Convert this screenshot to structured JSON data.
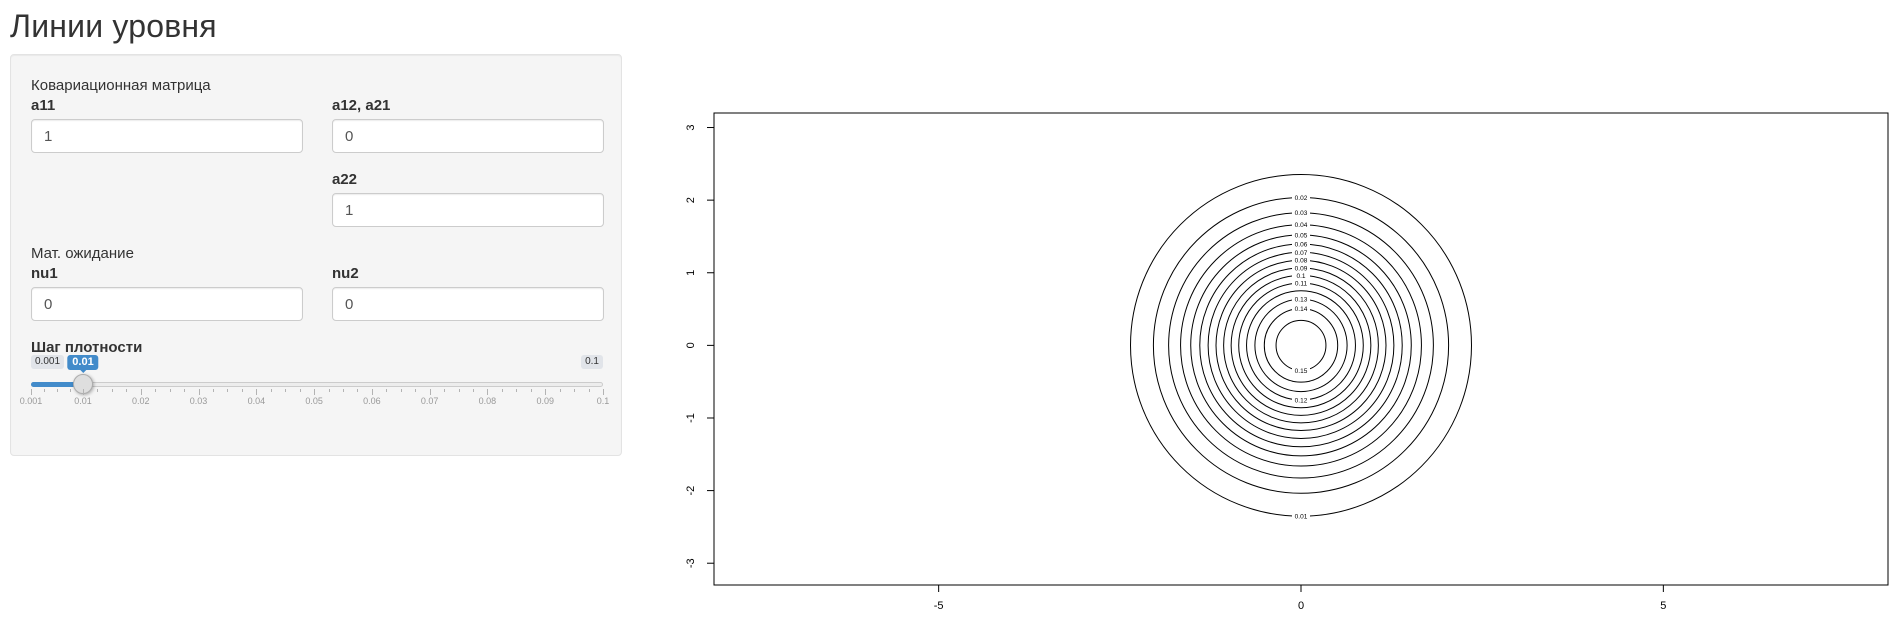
{
  "page": {
    "title": "Линии уровня"
  },
  "sidebar": {
    "cov_section_label": "Ковариационная матрица",
    "a11": {
      "label": "a11",
      "value": "1"
    },
    "a12": {
      "label": "a12, a21",
      "value": "0"
    },
    "a22": {
      "label": "a22",
      "value": "1"
    },
    "mean_section_label": "Мат. ожидание",
    "nu1": {
      "label": "nu1",
      "value": "0"
    },
    "nu2": {
      "label": "nu2",
      "value": "0"
    },
    "step": {
      "label": "Шаг плотности",
      "min_label": "0.001",
      "max_label": "0.1",
      "value_label": "0.01",
      "min": 0.001,
      "max": 0.1,
      "value": 0.01,
      "ticks": [
        "0.001",
        "0.01",
        "0.02",
        "0.03",
        "0.04",
        "0.05",
        "0.06",
        "0.07",
        "0.08",
        "0.09",
        "0.1"
      ]
    }
  },
  "chart_data": {
    "type": "contour",
    "title": "",
    "xlabel": "",
    "ylabel": "",
    "xlim": [
      -8.1,
      8.1
    ],
    "ylim": [
      -3.3,
      3.2
    ],
    "xticks": [
      -5,
      0,
      5
    ],
    "yticks": [
      -3,
      -2,
      -1,
      0,
      1,
      2,
      3
    ],
    "center": [
      0,
      0
    ],
    "levels": [
      {
        "label": "0.01",
        "value": 0.01
      },
      {
        "label": "0.02",
        "value": 0.02
      },
      {
        "label": "0.03",
        "value": 0.03
      },
      {
        "label": "0.04",
        "value": 0.04
      },
      {
        "label": "0.05",
        "value": 0.05
      },
      {
        "label": "0.06",
        "value": 0.06
      },
      {
        "label": "0.07",
        "value": 0.07
      },
      {
        "label": "0.08",
        "value": 0.08
      },
      {
        "label": "0.09",
        "value": 0.09
      },
      {
        "label": "0.1",
        "value": 0.1
      },
      {
        "label": "0.11",
        "value": 0.11
      },
      {
        "label": "0.12",
        "value": 0.12
      },
      {
        "label": "0.13",
        "value": 0.13
      },
      {
        "label": "0.14",
        "value": 0.14
      },
      {
        "label": "0.15",
        "value": 0.15
      }
    ]
  }
}
